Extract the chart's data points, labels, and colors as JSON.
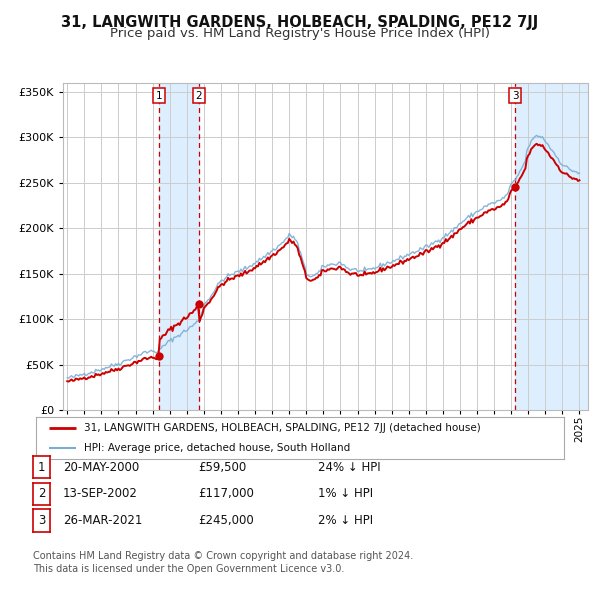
{
  "title": "31, LANGWITH GARDENS, HOLBEACH, SPALDING, PE12 7JJ",
  "subtitle": "Price paid vs. HM Land Registry's House Price Index (HPI)",
  "sale_dates_num": [
    2000.38,
    2002.71,
    2021.23
  ],
  "sale_prices": [
    59500,
    117000,
    245000
  ],
  "sale_labels": [
    "1",
    "2",
    "3"
  ],
  "legend_line1": "31, LANGWITH GARDENS, HOLBEACH, SPALDING, PE12 7JJ (detached house)",
  "legend_line2": "HPI: Average price, detached house, South Holland",
  "table_rows": [
    [
      "1",
      "20-MAY-2000",
      "£59,500",
      "24% ↓ HPI"
    ],
    [
      "2",
      "13-SEP-2002",
      "£117,000",
      "1% ↓ HPI"
    ],
    [
      "3",
      "26-MAR-2021",
      "£245,000",
      "2% ↓ HPI"
    ]
  ],
  "footnote1": "Contains HM Land Registry data © Crown copyright and database right 2024.",
  "footnote2": "This data is licensed under the Open Government Licence v3.0.",
  "hpi_color": "#7aadd4",
  "price_color": "#cc0000",
  "dot_color": "#cc0000",
  "vline_color": "#cc0000",
  "shade_color": "#ddeeff",
  "background_color": "#ffffff",
  "grid_color": "#cccccc",
  "ylim": [
    0,
    360000
  ],
  "yticks": [
    0,
    50000,
    100000,
    150000,
    200000,
    250000,
    300000,
    350000
  ],
  "xmin": 1994.75,
  "xmax": 2025.5,
  "title_fontsize": 10.5,
  "subtitle_fontsize": 9.5
}
